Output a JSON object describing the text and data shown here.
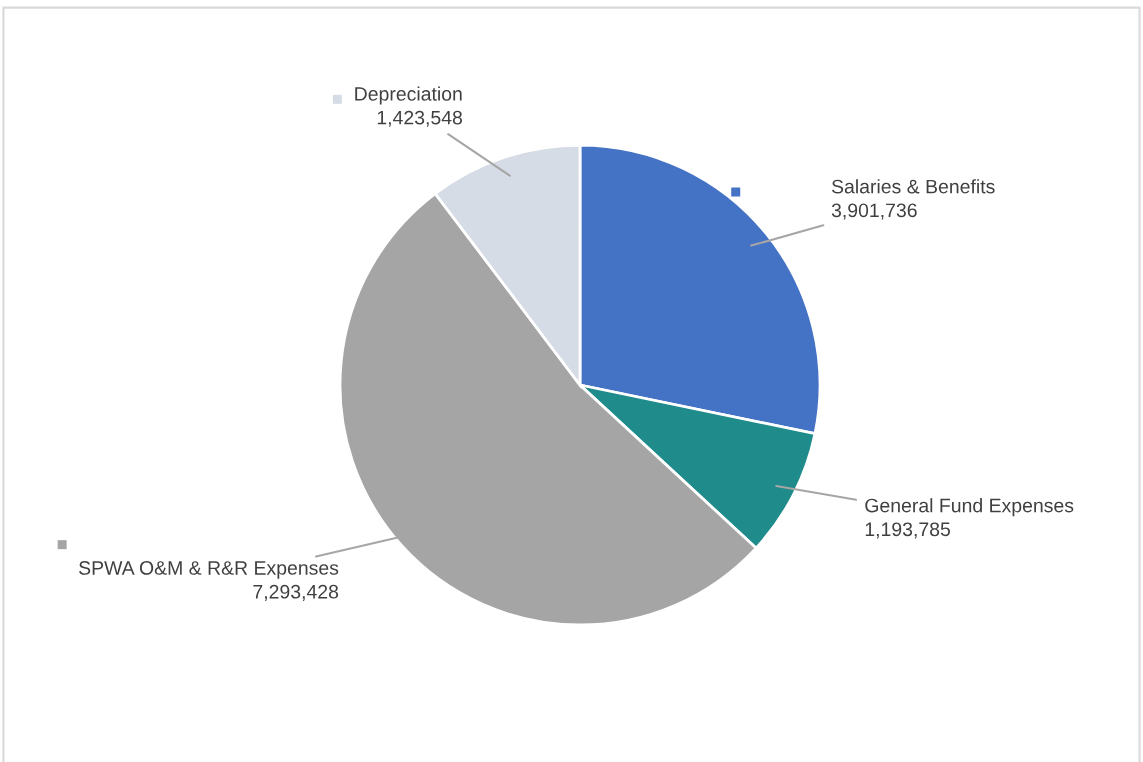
{
  "chart_data": {
    "type": "pie",
    "categories": [
      "Salaries & Benefits",
      "General Fund Expenses",
      "SPWA O&M & R&R Expenses",
      "Depreciation"
    ],
    "values": [
      3901736,
      1193785,
      7293428,
      1423548
    ],
    "colors": [
      "#4472c4",
      "#1f8b8b",
      "#a5a5a5",
      "#d6dce5"
    ],
    "value_labels": [
      "3,901,736",
      "1,193,785",
      "7,293,428",
      "1,423,548"
    ],
    "data_labels": true
  }
}
